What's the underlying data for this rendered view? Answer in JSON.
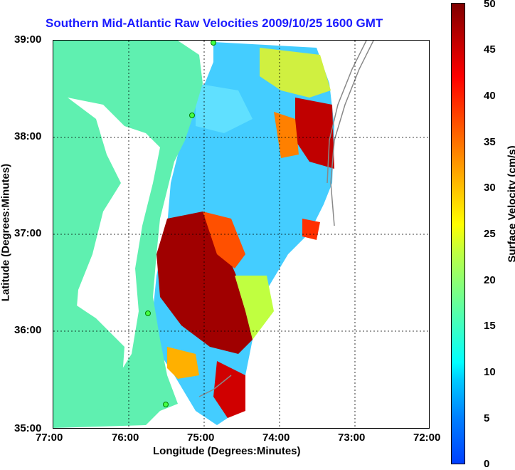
{
  "title": "Southern Mid-Atlantic Raw Velocities 2009/10/25 1600 GMT",
  "axes": {
    "xlabel": "Longitude (Degrees:Minutes)",
    "ylabel": "Latitude (Degrees:Minutes)",
    "x_ticks": [
      "77:00",
      "76:00",
      "75:00",
      "74:00",
      "73:00",
      "72:00"
    ],
    "y_ticks": [
      "39:00",
      "38:00",
      "37:00",
      "36:00",
      "35:00"
    ],
    "grid": "dotted"
  },
  "colorbar": {
    "title": "Surface Velocity (cm/s)",
    "ticks": [
      "0",
      "5",
      "10",
      "15",
      "20",
      "25",
      "30",
      "35",
      "40",
      "45",
      "50"
    ],
    "range": [
      0,
      50
    ]
  },
  "colors": {
    "land": "#5ff0b0",
    "water": "#ffffff",
    "title": "#1a1aff",
    "site_marker": "#44ff44"
  }
}
